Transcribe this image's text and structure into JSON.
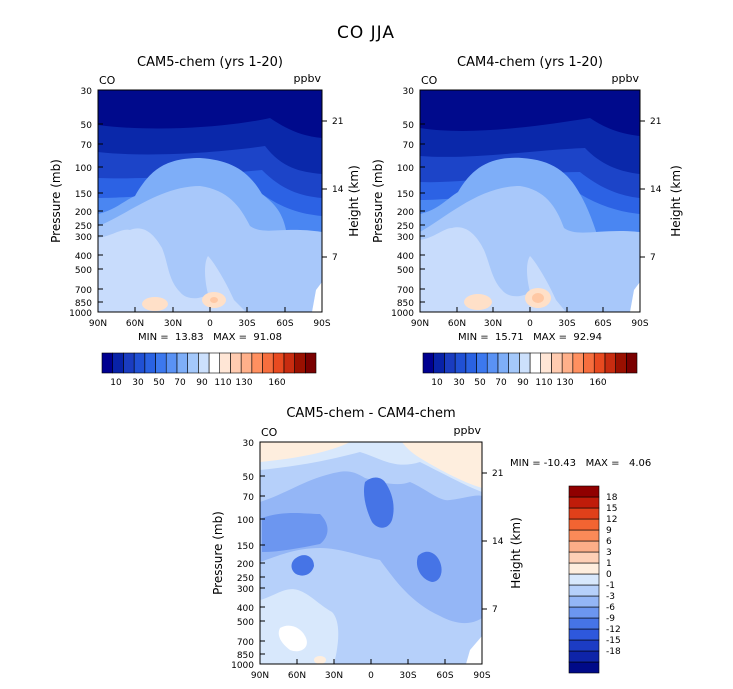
{
  "figure_title": "CO JJA",
  "chart_data": [
    {
      "type": "heatmap",
      "title": "CAM5-chem (yrs 1-20)",
      "field_label": "CO",
      "units_label": "ppbv",
      "ylabel": "Pressure (mb)",
      "y2label": "Height (km)",
      "xlabel": "",
      "x_ticks": [
        "90N",
        "60N",
        "30N",
        "0",
        "30S",
        "60S",
        "90S"
      ],
      "y_ticks": [
        "30",
        "50",
        "70",
        "100",
        "150",
        "200",
        "250",
        "300",
        "400",
        "500",
        "700",
        "850",
        "1000"
      ],
      "y2_ticks": [
        "21",
        "14",
        "7"
      ],
      "ylim_mb": [
        1000,
        30
      ],
      "stats_text": "MIN =  13.83   MAX =  91.08",
      "min": 13.83,
      "max": 91.08,
      "colorbar_labels": [
        "10",
        "30",
        "50",
        "70",
        "90",
        "110",
        "130",
        "160"
      ]
    },
    {
      "type": "heatmap",
      "title": "CAM4-chem (yrs 1-20)",
      "field_label": "CO",
      "units_label": "ppbv",
      "ylabel": "Pressure (mb)",
      "y2label": "Height (km)",
      "xlabel": "",
      "x_ticks": [
        "90N",
        "60N",
        "30N",
        "0",
        "30S",
        "60S",
        "90S"
      ],
      "y_ticks": [
        "30",
        "50",
        "70",
        "100",
        "150",
        "200",
        "250",
        "300",
        "400",
        "500",
        "700",
        "850",
        "1000"
      ],
      "y2_ticks": [
        "21",
        "14",
        "7"
      ],
      "ylim_mb": [
        1000,
        30
      ],
      "stats_text": "MIN =  15.71   MAX =  92.94",
      "min": 15.71,
      "max": 92.94,
      "colorbar_labels": [
        "10",
        "30",
        "50",
        "70",
        "90",
        "110",
        "130",
        "160"
      ]
    },
    {
      "type": "heatmap",
      "title": "CAM5-chem - CAM4-chem",
      "field_label": "CO",
      "units_label": "ppbv",
      "ylabel": "Pressure (mb)",
      "y2label": "Height (km)",
      "xlabel": "",
      "x_ticks": [
        "90N",
        "60N",
        "30N",
        "0",
        "30S",
        "60S",
        "90S"
      ],
      "y_ticks": [
        "30",
        "50",
        "70",
        "100",
        "150",
        "200",
        "250",
        "300",
        "400",
        "500",
        "700",
        "850",
        "1000"
      ],
      "y2_ticks": [
        "21",
        "14",
        "7"
      ],
      "ylim_mb": [
        1000,
        30
      ],
      "stats_text": "MIN = -10.43   MAX =   4.06",
      "min": -10.43,
      "max": 4.06,
      "colorbar_labels": [
        "18",
        "15",
        "12",
        "9",
        "6",
        "3",
        "1",
        "0",
        "-1",
        "-3",
        "-6",
        "-9",
        "-12",
        "-15",
        "-18"
      ]
    }
  ],
  "colors": {
    "abs_scale": [
      "#000090",
      "#0822a8",
      "#1a3cc0",
      "#2050d4",
      "#2a62e2",
      "#3c78ee",
      "#5a92f4",
      "#7eaef8",
      "#a4c8fa",
      "#cce0fc",
      "#ffffff",
      "#ffe6d6",
      "#ffcbb0",
      "#ffb08a",
      "#ff9060",
      "#f66e3e",
      "#e84a20",
      "#c82c10",
      "#9a1000",
      "#7a0000"
    ],
    "diff_scale": [
      "#900000",
      "#c01c0a",
      "#e0401a",
      "#f26432",
      "#fa8a58",
      "#fcae88",
      "#fed0b6",
      "#feeede",
      "#d8e8fc",
      "#b6d0fa",
      "#94b6f6",
      "#6c96f0",
      "#4674e6",
      "#2e58dc",
      "#1c3cc4",
      "#0e24a8",
      "#000a88"
    ]
  }
}
